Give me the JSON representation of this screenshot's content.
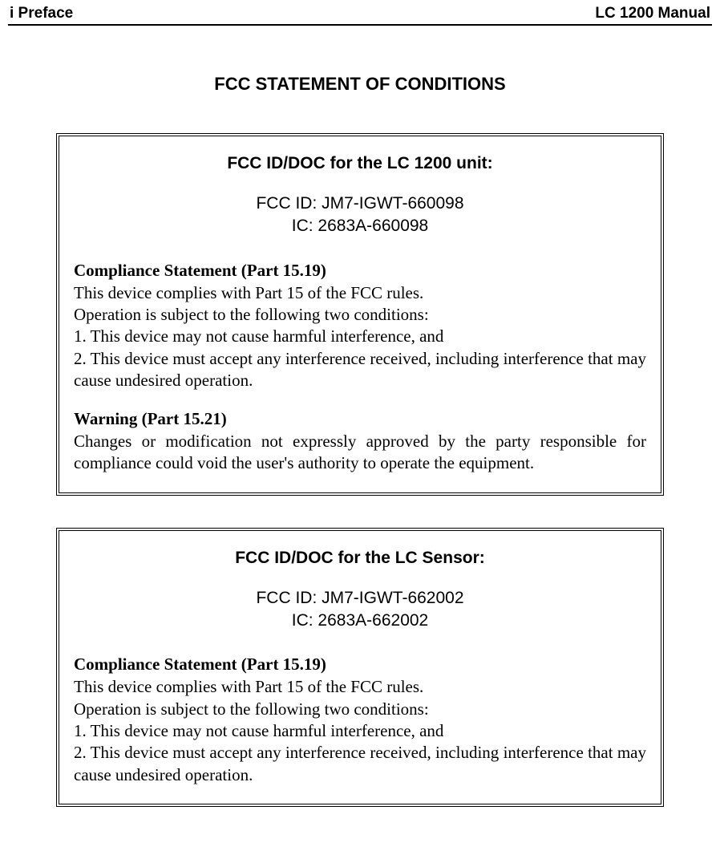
{
  "header": {
    "left": "i Preface",
    "right": "LC 1200 Manual"
  },
  "main_title": "FCC STATEMENT OF CONDITIONS",
  "box1": {
    "title": "FCC ID/DOC for the LC 1200 unit:",
    "fcc_id": "FCC ID: JM7-IGWT-660098",
    "ic": "IC: 2683A-660098",
    "compliance_heading": "Compliance Statement (Part 15.19)",
    "compliance_line1": "This device complies with Part 15 of the FCC rules.",
    "compliance_line2": "Operation is subject to the following two conditions:",
    "compliance_line3": "1. This device may not cause harmful interference, and",
    "compliance_line4": "2. This device must accept any interference received, including interference that may cause undesired operation.",
    "warning_heading": "Warning (Part 15.21)",
    "warning_text": "Changes or modification not expressly approved by the party responsible for compliance could void the user's authority to operate the equipment."
  },
  "box2": {
    "title": "FCC ID/DOC for the LC Sensor:",
    "fcc_id": "FCC ID: JM7-IGWT-662002",
    "ic": "IC: 2683A-662002",
    "compliance_heading": "Compliance Statement (Part 15.19)",
    "compliance_line1": "This device complies with Part 15 of the FCC rules.",
    "compliance_line2": "Operation is subject to the following two conditions:",
    "compliance_line3": "1. This device may not cause harmful interference, and",
    "compliance_line4": "2. This device must accept any interference received, including interference that may cause undesired operation."
  }
}
